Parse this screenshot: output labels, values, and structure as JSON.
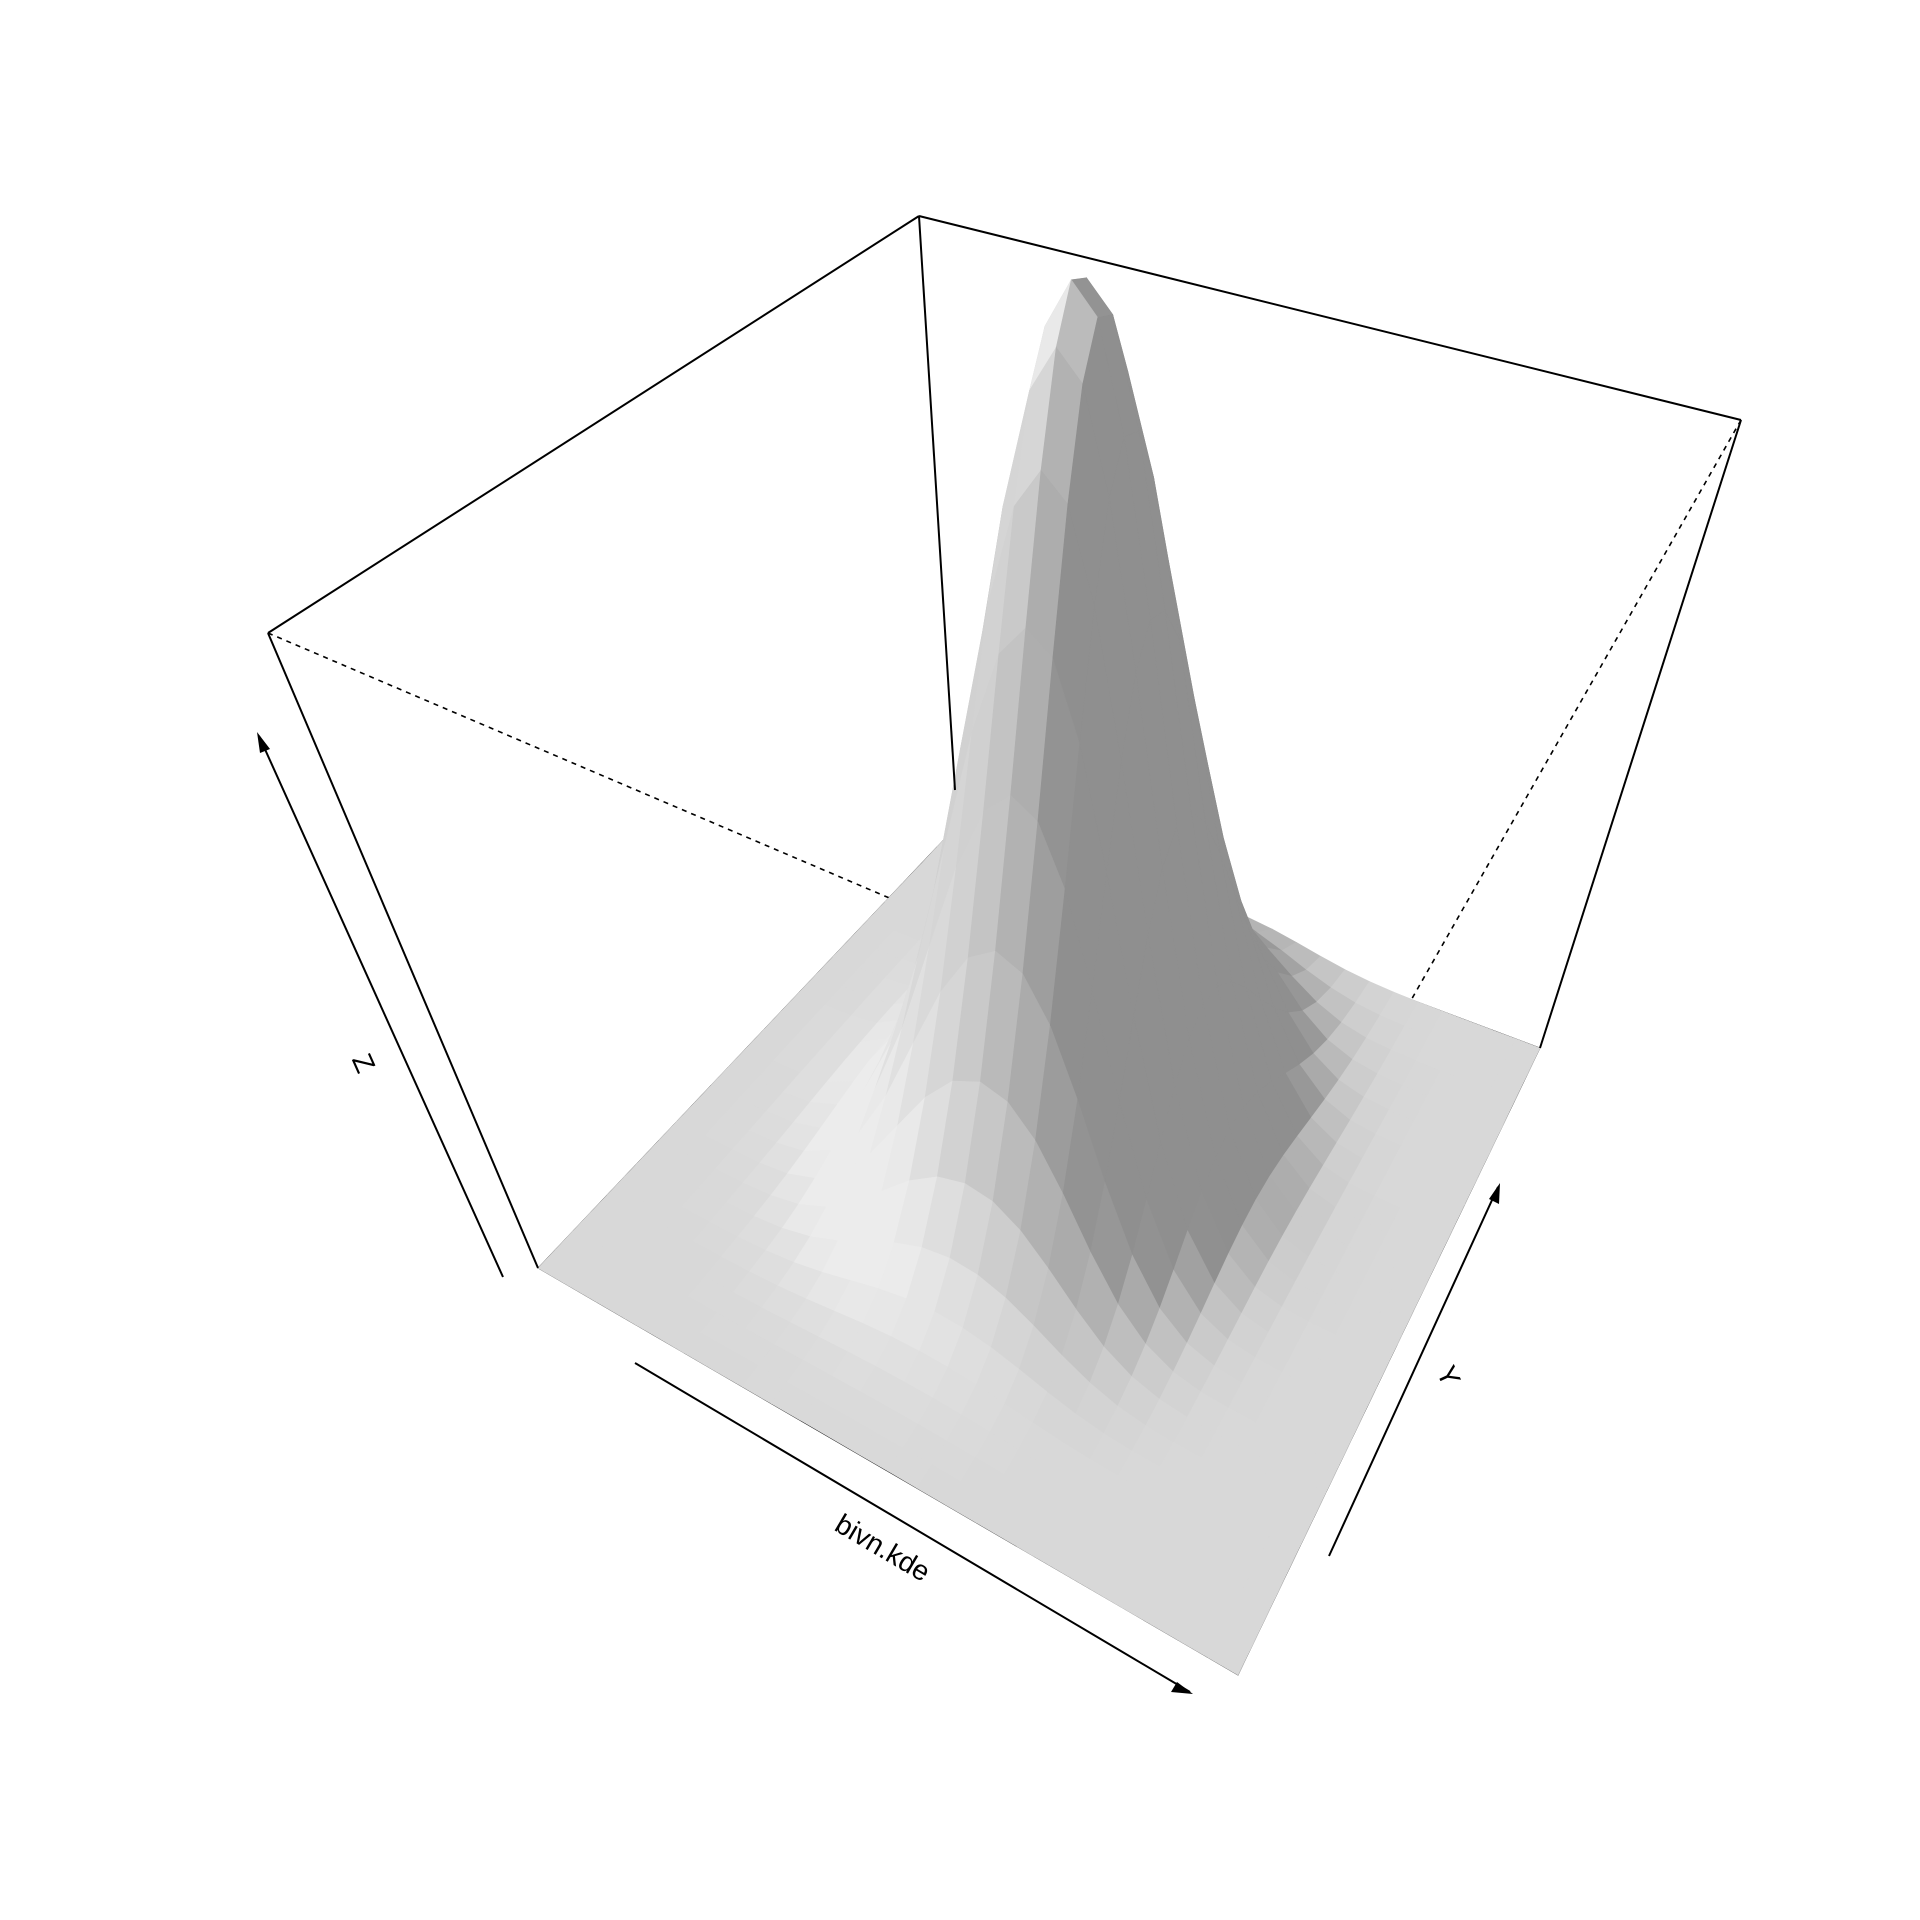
{
  "chart_data": {
    "type": "surface",
    "title": "",
    "xlabel": "bivn.kde",
    "ylabel": "Y",
    "zlabel": "Z",
    "axis_arrows": true,
    "tick_labels": false,
    "grid": false,
    "legend": "none",
    "colors": {
      "background": "#ffffff",
      "floor": "#ebebeb",
      "shade_dark": "#8f8f8f",
      "shade_light": "#ececec",
      "box": "#000000"
    },
    "view": {
      "theta_deg": 30,
      "phi_deg": 30
    },
    "density": {
      "grid_size": 25,
      "x_range": [
        -3,
        3
      ],
      "y_range": [
        -3,
        3
      ],
      "z_range": [
        0,
        0.17
      ],
      "components": [
        {
          "weight": 0.5,
          "mean_x": -0.6,
          "mean_y": 0.55,
          "sd_x": 0.55,
          "sd_y": 0.9
        },
        {
          "weight": 0.5,
          "mean_x": 0.2,
          "mean_y": 0.55,
          "sd_x": 0.55,
          "sd_y": 0.9
        }
      ]
    }
  }
}
